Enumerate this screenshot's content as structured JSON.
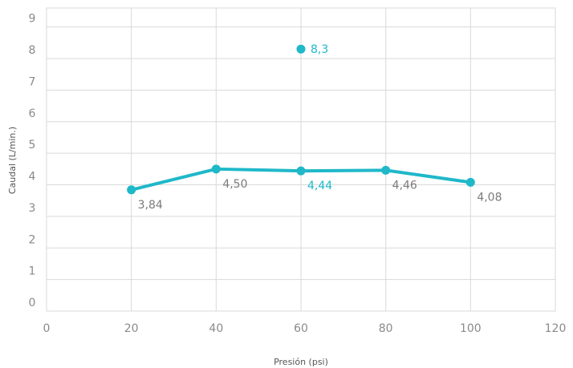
{
  "chart_data": {
    "type": "line",
    "xlabel": "Presión (psi)",
    "ylabel": "Caudal (L/min.)",
    "xlim": [
      0,
      120
    ],
    "ylim": [
      0,
      9.6
    ],
    "x_ticks": [
      "0",
      "20",
      "40",
      "60",
      "80",
      "100",
      "120"
    ],
    "y_ticks": [
      "0",
      "1",
      "2",
      "3",
      "4",
      "5",
      "6",
      "7",
      "8",
      "9"
    ],
    "grid": true,
    "series": [
      {
        "type": "line",
        "color": "#1fb8c9",
        "points": [
          {
            "x": 20,
            "y": 3.84,
            "label": "3,84",
            "label_color": "#7a7a7a"
          },
          {
            "x": 40,
            "y": 4.5,
            "label": "4,50",
            "label_color": "#7a7a7a"
          },
          {
            "x": 60,
            "y": 4.44,
            "label": "4,44",
            "label_color": "#1fb8c9"
          },
          {
            "x": 80,
            "y": 4.46,
            "label": "4,46",
            "label_color": "#7a7a7a"
          },
          {
            "x": 100,
            "y": 4.08,
            "label": "4,08",
            "label_color": "#7a7a7a"
          }
        ]
      },
      {
        "type": "scatter",
        "color": "#1fb8c9",
        "points": [
          {
            "x": 60,
            "y": 8.3,
            "label": "8,3",
            "label_color": "#1fb8c9"
          }
        ]
      }
    ]
  }
}
